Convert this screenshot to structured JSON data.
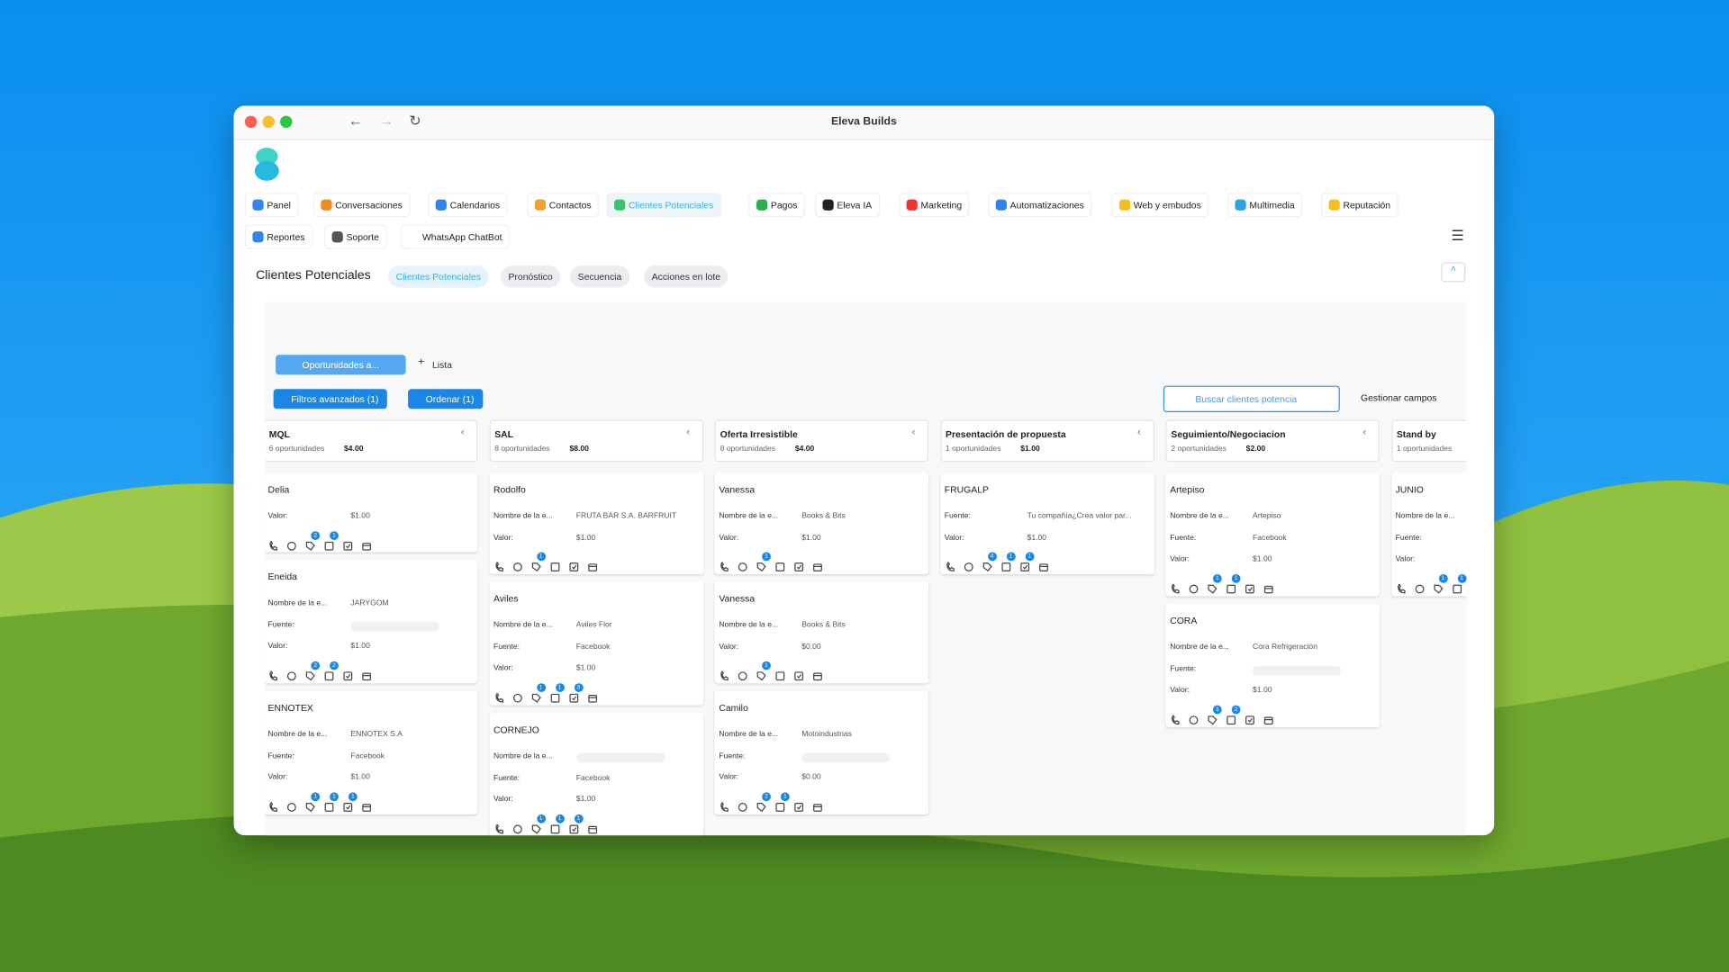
{
  "window_title": "Eleva Builds",
  "nav": [
    "Panel",
    "Conversaciones",
    "Calendarios",
    "Contactos",
    "Clientes Potenciales",
    "Pagos",
    "Eleva IA",
    "Marketing",
    "Automatizaciones",
    "Web y embudos",
    "Multimedia",
    "Reputación",
    "Reportes",
    "Soporte",
    "WhatsApp ChatBot"
  ],
  "page_title": "Clientes Potenciales",
  "tabs": [
    "Clientes Potenciales",
    "Pronóstico",
    "Secuencia",
    "Acciones en lote"
  ],
  "view_tab": "Oportunidades a...",
  "add_list": "Lista",
  "filters": "Filtros avanzados (1)",
  "sort": "Ordenar (1)",
  "search_placeholder": "Buscar clientes potencia",
  "manage_fields": "Gestionar campos",
  "columns": [
    {
      "name": "MQL",
      "count": "6 oportunidades",
      "total": "$4.00",
      "cards": [
        {
          "name": "Delia",
          "fields": [
            {
              "label": "Valor:",
              "value": "$1.00"
            }
          ],
          "badges": [
            2,
            1
          ]
        },
        {
          "name": "Eneida",
          "fields": [
            {
              "label": "Nombre de la e...",
              "value": "JARYGOM"
            },
            {
              "label": "Fuente:"
            },
            {
              "label": "Valor:",
              "value": "$1.00"
            }
          ],
          "badges": [
            2,
            2
          ]
        },
        {
          "name": "ENNOTEX",
          "fields": [
            {
              "label": "Nombre de la e...",
              "value": "ENNOTEX S.A"
            },
            {
              "label": "Fuente:",
              "value": "Facebook"
            },
            {
              "label": "Valor:",
              "value": "$1.00"
            }
          ],
          "badges": [
            1,
            1,
            1
          ]
        }
      ]
    },
    {
      "name": "SAL",
      "count": "8 oportunidades",
      "total": "$8.00",
      "cards": [
        {
          "name": "Rodolfo",
          "fields": [
            {
              "label": "Nombre de la e...",
              "value": "FRUTA BAR S.A. BARFRUIT"
            },
            {
              "label": "Valor:",
              "value": "$1.00"
            }
          ],
          "badges": [
            1
          ]
        },
        {
          "name": "Aviles",
          "fields": [
            {
              "label": "Nombre de la e...",
              "value": "Aviles Flor"
            },
            {
              "label": "Fuente:",
              "value": "Facebook"
            },
            {
              "label": "Valor:",
              "value": "$1.00"
            }
          ],
          "badges": [
            1,
            1,
            3
          ]
        },
        {
          "name": "CORNEJO",
          "fields": [
            {
              "label": "Nombre de la e..."
            },
            {
              "label": "Fuente:",
              "value": "Facebook"
            },
            {
              "label": "Valor:",
              "value": "$1.00"
            }
          ],
          "badges": [
            1,
            1,
            1
          ]
        }
      ]
    },
    {
      "name": "Oferta Irresistible",
      "count": "8 oportunidades",
      "total": "$4.00",
      "cards": [
        {
          "name": "Vanessa",
          "fields": [
            {
              "label": "Nombre de la e...",
              "value": "Books & Bits"
            },
            {
              "label": "Valor:",
              "value": "$1.00"
            }
          ],
          "badges": [
            1
          ]
        },
        {
          "name": "Vanessa",
          "fields": [
            {
              "label": "Nombre de la e...",
              "value": "Books & Bits"
            },
            {
              "label": "Valor:",
              "value": "$0.00"
            }
          ],
          "badges": [
            1
          ]
        },
        {
          "name": "Camilo",
          "fields": [
            {
              "label": "Nombre de la e...",
              "value": "Motoindustrias"
            },
            {
              "label": "Fuente:"
            },
            {
              "label": "Valor:",
              "value": "$0.00"
            }
          ],
          "badges": [
            2,
            1
          ]
        }
      ]
    },
    {
      "name": "Presentación de propuesta",
      "count": "1 oportunidades",
      "total": "$1.00",
      "cards": [
        {
          "name": "FRUGALP",
          "fields": [
            {
              "label": "Fuente:",
              "value": "Tu compañía¿Crea valor par..."
            },
            {
              "label": "Valor:",
              "value": "$1.00"
            }
          ],
          "badges": [
            4,
            1,
            1
          ]
        }
      ]
    },
    {
      "name": "Seguimiento/Negociacion",
      "count": "2 oportunidades",
      "total": "$2.00",
      "cards": [
        {
          "name": "Artepiso",
          "fields": [
            {
              "label": "Nombre de la e...",
              "value": "Artepiso"
            },
            {
              "label": "Fuente:",
              "value": "Facebook"
            },
            {
              "label": "Valor:",
              "value": "$1.00"
            }
          ],
          "badges": [
            1,
            1
          ]
        },
        {
          "name": "CORA",
          "fields": [
            {
              "label": "Nombre de la e...",
              "value": "Cora Refrigeración"
            },
            {
              "label": "Fuente:"
            },
            {
              "label": "Valor:",
              "value": "$1.00"
            }
          ],
          "badges": [
            1,
            2
          ]
        }
      ]
    },
    {
      "name": "Stand by",
      "count": "1 oportunidades",
      "cards": [
        {
          "name": "JUNIO",
          "fields": [
            {
              "label": "Nombre de la e..."
            },
            {
              "label": "Fuente:"
            },
            {
              "label": "Valor:"
            }
          ],
          "badges": [
            1,
            1
          ]
        }
      ]
    }
  ]
}
